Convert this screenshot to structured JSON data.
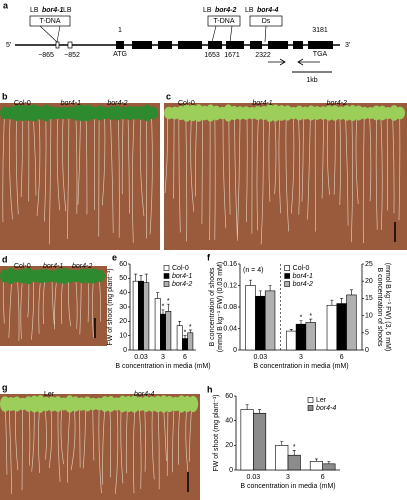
{
  "gene_diagram": {
    "panel": "a",
    "five_prime": "5'",
    "three_prime": "3'",
    "lb1": "LB",
    "bor4_1": "bor4-1",
    "lb2": "LB",
    "tdna1": "T-DNA",
    "pos_start": "1",
    "pos_865": "−865",
    "pos_852": "−852",
    "atg": "ATG",
    "lb3": "LB",
    "bor4_2": "bor4-2",
    "lb4": "LB",
    "bor4_4": "bor4-4",
    "tdna2": "T-DNA",
    "ds": "Ds",
    "pos_1653": "1653",
    "pos_1671": "1671",
    "pos_2322": "2322",
    "pos_3181": "3181",
    "tga": "TGA",
    "scale": "1kb"
  },
  "photos": [
    {
      "panel": "b",
      "labels": [
        "Col-0",
        "bor4-1",
        "bor4-2"
      ]
    },
    {
      "panel": "c",
      "labels": [
        "Col-0",
        "bor4-1",
        "bor4-2"
      ]
    },
    {
      "panel": "d",
      "labels": [
        "Col-0",
        "bor4-1",
        "bor4-2"
      ]
    },
    {
      "panel": "g",
      "labels": [
        "Ler",
        "bor4-4"
      ]
    }
  ],
  "chart_data": [
    {
      "panel": "e",
      "type": "bar",
      "categories": [
        "0.03",
        "3",
        "6"
      ],
      "xlabel": "B concentration in media (mM)",
      "ylabel": [
        "FW of shoot (mg plant⁻¹)"
      ],
      "ylim": [
        0,
        60
      ],
      "yticks": [
        0,
        10,
        20,
        30,
        40,
        50,
        60
      ],
      "legend": "upper right",
      "series": [
        {
          "name": "Col-0",
          "color": "#ffffff",
          "values": [
            48,
            36,
            17
          ],
          "errors": [
            5,
            4,
            3
          ],
          "marks": [
            null,
            null,
            null
          ]
        },
        {
          "name": "bor4-1",
          "color": "#000000",
          "values": [
            48,
            25,
            8
          ],
          "errors": [
            4,
            3,
            2
          ],
          "marks": [
            null,
            "*",
            "*"
          ]
        },
        {
          "name": "bor4-2",
          "color": "#b0b0b0",
          "values": [
            47,
            27,
            12
          ],
          "errors": [
            6,
            5,
            2
          ],
          "marks": [
            null,
            "*",
            "*"
          ]
        }
      ]
    },
    {
      "panel": "f",
      "type": "bar",
      "annotation": "(n = 4)",
      "categories": [
        "0.03",
        "3",
        "6"
      ],
      "category_axis": [
        "y",
        "y2",
        "y2"
      ],
      "xlabel": "B concentration in media (mM)",
      "ylabel": [
        "B concentration of shoots",
        "(mmol B kg⁻¹ FW) (0.03 mM)"
      ],
      "y2label": [
        "B concentration of shoots",
        "(mmol B kg⁻¹ FW) (3, 6 mM)"
      ],
      "ylim": [
        0,
        0.16
      ],
      "yticks": [
        0,
        0.04,
        0.08,
        0.12,
        0.16
      ],
      "y2lim": [
        0,
        25
      ],
      "y2ticks": [
        0,
        5,
        10,
        15,
        20,
        25
      ],
      "legend": "upper center",
      "series": [
        {
          "name": "Col-0",
          "color": "#ffffff",
          "values": [
            0.12,
            5.5,
            13
          ],
          "errors": [
            0.01,
            0.5,
            1.5
          ],
          "marks": [
            null,
            null,
            null
          ]
        },
        {
          "name": "bor4-1",
          "color": "#000000",
          "values": [
            0.1,
            7.5,
            13.5
          ],
          "errors": [
            0.01,
            1,
            1.5
          ],
          "marks": [
            null,
            "*",
            null
          ]
        },
        {
          "name": "bor4-2",
          "color": "#b0b0b0",
          "values": [
            0.11,
            8,
            16
          ],
          "errors": [
            0.01,
            1,
            1.5
          ],
          "marks": [
            null,
            "*",
            null
          ]
        }
      ]
    },
    {
      "panel": "h",
      "type": "bar",
      "categories": [
        "0.03",
        "3",
        "6"
      ],
      "xlabel": "B concentration in media (mM)",
      "ylabel": [
        "FW of shoot (mg plant⁻¹)"
      ],
      "ylim": [
        0,
        60
      ],
      "yticks": [
        0,
        20,
        40,
        60
      ],
      "legend": "upper right",
      "series": [
        {
          "name": "Ler",
          "color": "#ffffff",
          "values": [
            49,
            20,
            7
          ],
          "errors": [
            4,
            3,
            2
          ],
          "marks": [
            null,
            null,
            null
          ]
        },
        {
          "name": "bor4-4",
          "color": "#8c8c8c",
          "values": [
            46,
            12,
            5
          ],
          "errors": [
            3,
            4,
            2
          ],
          "marks": [
            null,
            "*",
            null
          ]
        }
      ]
    }
  ]
}
